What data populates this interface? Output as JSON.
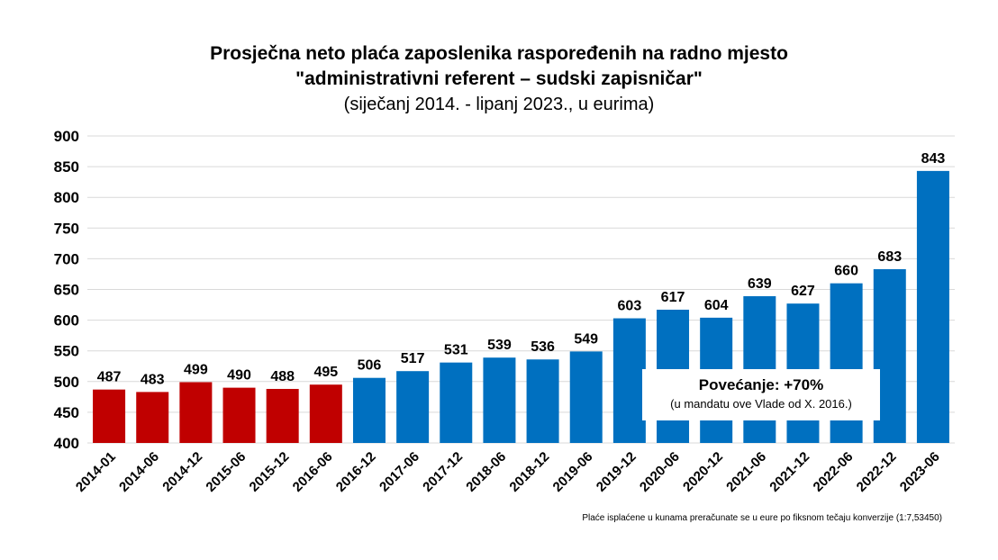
{
  "chart_data": {
    "type": "bar",
    "title": "Prosječna neto plaća zaposlenika raspoređenih na radno mjesto",
    "title_line2": "\"administrativni referent – sudski zapisničar\"",
    "subtitle": "(siječanj 2014. - lipanj 2023., u eurima)",
    "categories": [
      "2014-01",
      "2014-06",
      "2014-12",
      "2015-06",
      "2015-12",
      "2016-06",
      "2016-12",
      "2017-06",
      "2017-12",
      "2018-06",
      "2018-12",
      "2019-06",
      "2019-12",
      "2020-06",
      "2020-12",
      "2021-06",
      "2021-12",
      "2022-06",
      "2022-12",
      "2023-06"
    ],
    "values": [
      487,
      483,
      499,
      490,
      488,
      495,
      506,
      517,
      531,
      539,
      536,
      549,
      603,
      617,
      604,
      639,
      627,
      660,
      683,
      843
    ],
    "bar_colors": [
      "#C00000",
      "#C00000",
      "#C00000",
      "#C00000",
      "#C00000",
      "#C00000",
      "#0070C0",
      "#0070C0",
      "#0070C0",
      "#0070C0",
      "#0070C0",
      "#0070C0",
      "#0070C0",
      "#0070C0",
      "#0070C0",
      "#0070C0",
      "#0070C0",
      "#0070C0",
      "#0070C0",
      "#0070C0"
    ],
    "ylim": [
      400,
      900
    ],
    "yticks": [
      400,
      450,
      500,
      550,
      600,
      650,
      700,
      750,
      800,
      850,
      900
    ],
    "grid": true,
    "legend": "none",
    "xlabel": "",
    "ylabel": "",
    "annotation": {
      "main": "Povećanje: +70%",
      "sub": "(u mandatu ove Vlade od X. 2016.)"
    },
    "footnote": "Plaće isplaćene u kunama preračunate se u eure po fiksnom tečaju konverzije (1:7,53450)"
  }
}
